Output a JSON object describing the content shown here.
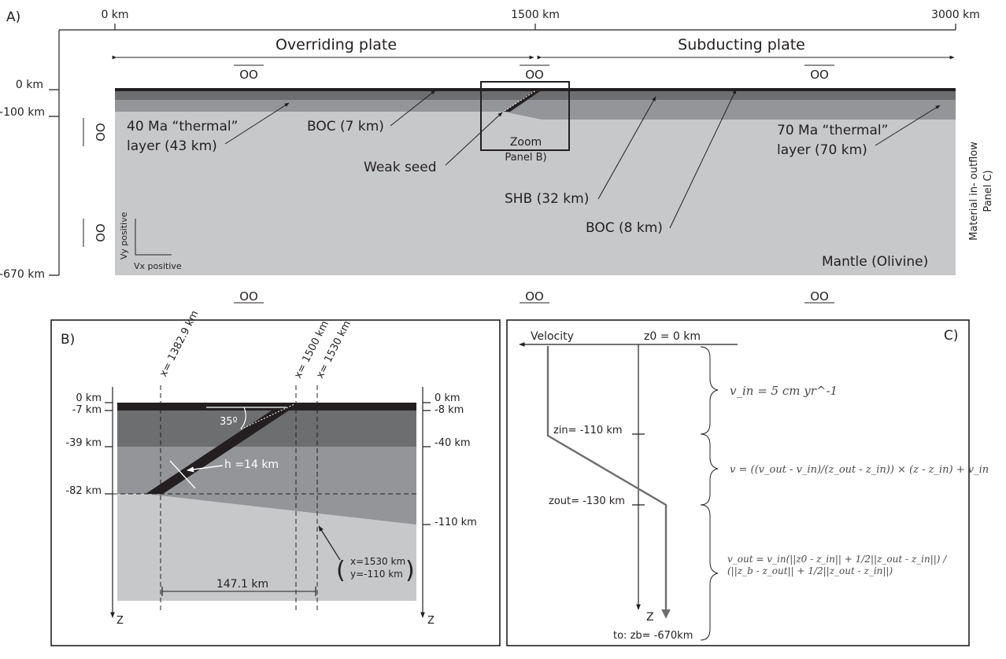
{
  "panel_a": {
    "label": "A)",
    "top_axis": [
      "0 km",
      "1500 km",
      "3000 km"
    ],
    "left_axis": [
      "0 km",
      "-100 km",
      "-670 km"
    ],
    "overriding_plate": "Overriding plate",
    "subducting_plate": "Subducting plate",
    "thermal_40_line1": "40 Ma “thermal”",
    "thermal_40_line2": "layer (43 km)",
    "boc_7": "BOC (7 km)",
    "weak_seed": "Weak seed",
    "zoom_line1": "Zoom",
    "zoom_line2": "Panel B)",
    "shb": "SHB (32 km)",
    "boc_8": "BOC (8 km)",
    "thermal_70_line1": "70 Ma “thermal”",
    "thermal_70_line2": "layer (70 km)",
    "mantle": "Mantle (Olivine)",
    "vy": "Vy positive",
    "vx": "Vx positive",
    "side_label_1": "Material in- outflow",
    "side_label_2": "Panel C)",
    "bc_symbol": "OO"
  },
  "panel_b": {
    "label": "B)",
    "x_1382": "x= 1382.9 km",
    "x_1500": "x= 1500 km",
    "x_1530": "x= 1530 km",
    "left_depths": [
      "0 km",
      "-7 km",
      "-39 km",
      "-82 km"
    ],
    "right_depths": [
      "0 km",
      "-8 km",
      "-40 km",
      "-110 km"
    ],
    "angle": "35º",
    "thickness": "h =14 km",
    "distance": "147.1 km",
    "point_x": "x=1530 km",
    "point_y": "y=-110 km",
    "z_left": "Z",
    "z_right": "Z"
  },
  "panel_c": {
    "label": "C)",
    "velocity": "Velocity",
    "z0": "z0 = 0 km",
    "z_in": "zin= -110 km",
    "z_out": "zout= -130 km",
    "z_axis": "Z",
    "z_bottom": "to: zb= -670km",
    "eq_vin": "v_in = 5 cm yr^-1",
    "eq_v": "v = ((v_out - v_in)/(z_out - z_in)) × (z - z_in) + v_in",
    "eq_vout": "v_out = v_in(||z0 - z_in|| + 1/2||z_out - z_in||) / (||z_b - z_out|| + 1/2||z_out - z_in||)"
  },
  "colors": {
    "crust_black": "#231f20",
    "layer_dark": "#6d6e70",
    "layer_mid": "#939598",
    "mantle": "#c7c8ca"
  }
}
